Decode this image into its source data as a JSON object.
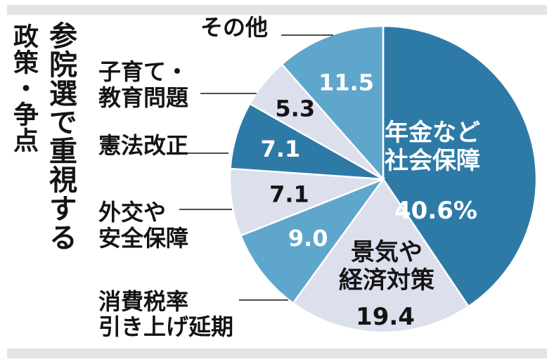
{
  "titles": {
    "right": "参院選で重視する",
    "left": "政策・争点"
  },
  "colors": {
    "dark": "#2e7aa6",
    "mid": "#5fa6cc",
    "light": "#dcdfec",
    "band": "#e4e4e4",
    "text": "#141414"
  },
  "chart_data": {
    "type": "pie",
    "title": "参院選で重視する 政策・争点",
    "unit": "%",
    "start": "12 o'clock, clockwise",
    "slices": [
      {
        "label_lines": [
          "年金など",
          "社会保障"
        ],
        "value": 40.6,
        "value_text": "40.6%",
        "color": "dark",
        "label_inside": true
      },
      {
        "label_lines": [
          "景気や",
          "経済対策"
        ],
        "value": 19.4,
        "value_text": "19.4",
        "color": "light",
        "label_inside": true
      },
      {
        "label_lines": [
          "消費税率",
          "引き上げ延期"
        ],
        "value": 9.0,
        "value_text": "9.0",
        "color": "mid",
        "label_inside": false
      },
      {
        "label_lines": [
          "外交や",
          "安全保障"
        ],
        "value": 7.1,
        "value_text": "7.1",
        "color": "light",
        "label_inside": false
      },
      {
        "label_lines": [
          "憲法改正"
        ],
        "value": 7.1,
        "value_text": "7.1",
        "color": "dark",
        "label_inside": false
      },
      {
        "label_lines": [
          "子育て・",
          "教育問題"
        ],
        "value": 5.3,
        "value_text": "5.3",
        "color": "light",
        "label_inside": false
      },
      {
        "label_lines": [
          "その他"
        ],
        "value": 11.5,
        "value_text": "11.5",
        "color": "mid",
        "label_inside": false
      }
    ]
  }
}
